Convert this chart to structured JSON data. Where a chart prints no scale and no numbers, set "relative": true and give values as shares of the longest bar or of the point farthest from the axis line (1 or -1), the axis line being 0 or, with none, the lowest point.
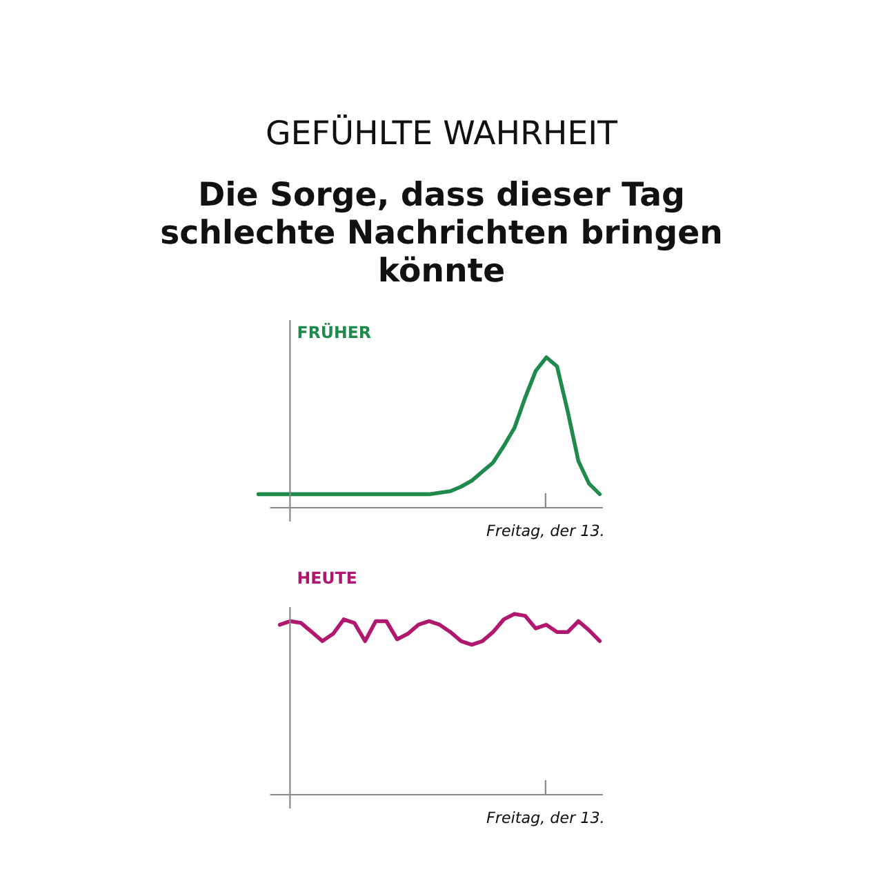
{
  "chart_data": [
    {
      "type": "line",
      "title": "GEFÜHLTE WAHRHEIT",
      "subtitle": "Die Sorge, dass dieser Tag schlechte Nachrichten bringen könnte",
      "relative": true,
      "legend": false,
      "marker": "none",
      "line_style": "solid",
      "categories": [
        null,
        null,
        null,
        null,
        null,
        null,
        null,
        null,
        null,
        null,
        null,
        null,
        null,
        null,
        null,
        null,
        null,
        null,
        null,
        null,
        null,
        null,
        null,
        null,
        null,
        null,
        null,
        null,
        null,
        null,
        null,
        null,
        null
      ],
      "annotations": [
        "Freitag, der 13."
      ],
      "series": [
        {
          "name": "FRÜHER",
          "color": "#1e8a4c",
          "values": [
            0.09,
            0.09,
            0.09,
            0.09,
            0.09,
            0.09,
            0.09,
            0.09,
            0.09,
            0.09,
            0.09,
            0.09,
            0.09,
            0.09,
            0.09,
            0.09,
            0.09,
            0.1,
            0.11,
            0.14,
            0.18,
            0.24,
            0.3,
            0.41,
            0.53,
            0.73,
            0.91,
            1,
            0.94,
            0.64,
            0.31,
            0.16,
            0.09
          ]
        }
      ]
    },
    {
      "type": "line",
      "relative": true,
      "legend": false,
      "marker": "none",
      "line_style": "solid",
      "categories": [
        null,
        null,
        null,
        null,
        null,
        null,
        null,
        null,
        null,
        null,
        null,
        null,
        null,
        null,
        null,
        null,
        null,
        null,
        null,
        null,
        null,
        null,
        null,
        null,
        null,
        null,
        null,
        null,
        null,
        null,
        null,
        null,
        null
      ],
      "annotations": [
        "Freitag, der 13."
      ],
      "series": [
        {
          "name": "HEUTE",
          "color": "#b0176e",
          "values": [
            null,
            null,
            0.94,
            0.96,
            0.95,
            0.9,
            0.85,
            0.89,
            0.97,
            0.95,
            0.85,
            0.96,
            0.96,
            0.86,
            0.89,
            0.94,
            0.96,
            0.94,
            0.9,
            0.85,
            0.83,
            0.85,
            0.9,
            0.97,
            1.0,
            0.99,
            0.92,
            0.94,
            0.9,
            0.9,
            0.96,
            0.91,
            0.85
          ]
        }
      ]
    }
  ]
}
